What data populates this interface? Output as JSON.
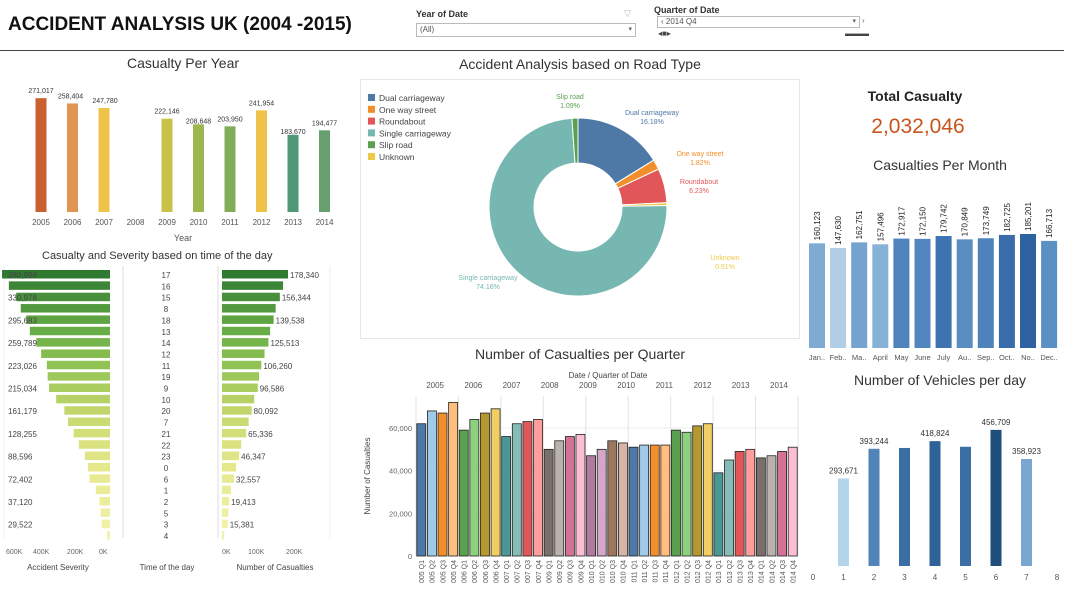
{
  "header": {
    "title": "ACCIDENT ANALYSIS UK (2004 -2015)",
    "filter_year_label": "Year of Date",
    "filter_year_value": "(All)",
    "filter_quarter_label": "Quarter of Date",
    "filter_quarter_value": "2014 Q4"
  },
  "kpi": {
    "label": "Total Casualty",
    "value": "2,032,046"
  },
  "chart_data": [
    {
      "type": "bar",
      "title": "Casualty Per Year",
      "xlabel": "Year",
      "categories": [
        "2005",
        "2006",
        "2007",
        "2008",
        "2009",
        "2010",
        "2011",
        "2012",
        "2013",
        "2014"
      ],
      "values": [
        271017,
        258404,
        247780,
        null,
        222146,
        208648,
        203950,
        241954,
        183670,
        194477
      ],
      "labels": [
        "271,017",
        "258,404",
        "247,780",
        "",
        "222,146",
        "208,648",
        "203,950",
        "241,954",
        "183,670",
        "194,477"
      ],
      "colors": [
        "#c8602f",
        "#e29550",
        "#efc24a",
        null,
        "#c9c14a",
        "#9cb84c",
        "#82ad58",
        "#efc24a",
        "#4d9875",
        "#65a06e"
      ],
      "ylim": [
        0,
        300000
      ]
    },
    {
      "type": "pie",
      "title": "Accident Analysis based on Road Type",
      "slices": [
        {
          "name": "Dual carriageway",
          "value": 16.18,
          "label": "16.18%",
          "color": "#4e79a7"
        },
        {
          "name": "One way street",
          "value": 1.82,
          "label": "1.82%",
          "color": "#f28e2b"
        },
        {
          "name": "Roundabout",
          "value": 6.23,
          "label": "6.23%",
          "color": "#e15759"
        },
        {
          "name": "Unknown",
          "value": 0.51,
          "label": "0.51%",
          "color": "#edc948"
        },
        {
          "name": "Single carriageway",
          "value": 74.16,
          "label": "74.16%",
          "color": "#76b7b2"
        },
        {
          "name": "Slip road",
          "value": 1.09,
          "label": "1.09%",
          "color": "#59a14f"
        }
      ],
      "legend": [
        "Dual carriageway",
        "One way street",
        "Roundabout",
        "Single carriageway",
        "Slip road",
        "Unknown"
      ],
      "legend_position": "top-left"
    },
    {
      "type": "bar",
      "title": "Casualties Per Month",
      "categories": [
        "Jan..",
        "Feb..",
        "Ma..",
        "April",
        "May",
        "June",
        "July",
        "Au..",
        "Sep..",
        "Oct..",
        "No..",
        "Dec.."
      ],
      "values": [
        160123,
        147630,
        162751,
        157496,
        172917,
        172150,
        179742,
        170849,
        173749,
        182725,
        185201,
        166713
      ],
      "labels": [
        "160,123",
        "147,630",
        "162,751",
        "157,496",
        "172,917",
        "172,150",
        "179,742",
        "170,849",
        "173,749",
        "182,725",
        "185,201",
        "166,713"
      ],
      "colors": [
        "#7fabd3",
        "#b2cde6",
        "#74a3cf",
        "#87b2d8",
        "#4f83bc",
        "#5187be",
        "#3c73b0",
        "#5a8dc2",
        "#4e82bc",
        "#3a6cab",
        "#2f62a3",
        "#5c8fc4"
      ]
    },
    {
      "type": "bar",
      "title": "Casualty and Severity based on time of the day",
      "categories": [
        "17",
        "16",
        "15",
        "8",
        "18",
        "13",
        "14",
        "12",
        "11",
        "19",
        "9",
        "10",
        "20",
        "7",
        "21",
        "22",
        "23",
        "0",
        "6",
        "1",
        "2",
        "5",
        "3",
        "4"
      ],
      "severity_values": [
        380998,
        357000,
        330978,
        315000,
        295683,
        283000,
        259789,
        243000,
        223026,
        220000,
        215034,
        190000,
        161179,
        148000,
        128255,
        110000,
        88596,
        78000,
        72402,
        50000,
        37120,
        33000,
        29522,
        10000
      ],
      "severity_labels": [
        "380,998",
        "",
        "330,978",
        "",
        "295,683",
        "",
        "259,789",
        "",
        "223,026",
        "",
        "215,034",
        "",
        "161,179",
        "",
        "128,255",
        "",
        "88,596",
        "",
        "72,402",
        "",
        "37,120",
        "",
        "29,522",
        ""
      ],
      "casualty_values": [
        178340,
        165000,
        156344,
        145000,
        139538,
        130000,
        125513,
        115000,
        106260,
        100000,
        96586,
        87000,
        80092,
        72000,
        65336,
        52000,
        46347,
        38000,
        32557,
        24000,
        19413,
        17000,
        15381,
        6000
      ],
      "casualty_labels": [
        "178,340",
        "",
        "156,344",
        "",
        "139,538",
        "",
        "125,513",
        "",
        "106,260",
        "",
        "96,586",
        "",
        "80,092",
        "",
        "65,336",
        "",
        "46,347",
        "",
        "32,557",
        "",
        "19,413",
        "",
        "15,381",
        ""
      ],
      "colors": [
        "#2f7a30",
        "#3d8537",
        "#48903b",
        "#529a3e",
        "#5ea443",
        "#69ad47",
        "#76b54b",
        "#84bc4f",
        "#90c254",
        "#9dc85a",
        "#aacd60",
        "#b6d266",
        "#c1d76c",
        "#cadb73",
        "#d2df79",
        "#d9e27f",
        "#dfe585",
        "#e4e88b",
        "#e8ea91",
        "#ebec97",
        "#edee9c",
        "#efefa1",
        "#f0f0a6",
        "#f1f1ab"
      ],
      "severity_axis": [
        "600K",
        "400K",
        "200K",
        "0K"
      ],
      "casualty_axis": [
        "0K",
        "100K",
        "200K"
      ],
      "col_labels": [
        "Accident Severity",
        "Time of the day",
        "Number of Casualties"
      ]
    },
    {
      "type": "bar",
      "title": "Number of Casualties per Quarter",
      "header": "Date / Quarter of Date",
      "ylabel": "Number of Casualties",
      "years": [
        "2005",
        "2006",
        "2007",
        "2009",
        "2010",
        "2011",
        "2012",
        "2013",
        "2014"
      ],
      "year_quarter_counts": [
        4,
        4,
        4,
        4,
        4,
        4,
        4,
        4,
        4
      ],
      "top_years": [
        "2005",
        "2006",
        "2007",
        "2008",
        "2009",
        "2010",
        "2011",
        "2012",
        "2013",
        "2014"
      ],
      "categories": [
        "005 Q1",
        "005 Q2",
        "005 Q3",
        "005 Q4",
        "006 Q1",
        "006 Q2",
        "006 Q3",
        "006 Q4",
        "007 Q1",
        "007 Q2",
        "007 Q3",
        "007 Q4",
        "009 Q1",
        "009 Q2",
        "009 Q3",
        "009 Q4",
        "010 Q1",
        "010 Q2",
        "010 Q3",
        "010 Q4",
        "011 Q1",
        "011 Q2",
        "011 Q3",
        "011 Q4",
        "012 Q1",
        "012 Q2",
        "012 Q3",
        "012 Q4",
        "013 Q1",
        "013 Q2",
        "013 Q3",
        "013 Q4",
        "014 Q1",
        "014 Q2",
        "014 Q3",
        "014 Q4"
      ],
      "values": [
        62000,
        68000,
        67000,
        72000,
        59000,
        64000,
        67000,
        69000,
        56000,
        62000,
        63000,
        64000,
        50000,
        54000,
        56000,
        57000,
        47000,
        50000,
        54000,
        53000,
        51000,
        52000,
        52000,
        52000,
        59000,
        58000,
        61000,
        62000,
        39000,
        45000,
        49000,
        50000,
        46000,
        47000,
        49000,
        51000
      ],
      "colors": [
        "#4e79a7",
        "#a0cbe8",
        "#f28e2b",
        "#ffbe7d",
        "#59a14f",
        "#8cd17d",
        "#b6992d",
        "#f1ce63",
        "#499894",
        "#86bcb6",
        "#e15759",
        "#ff9d9a",
        "#79706e",
        "#bab0ac",
        "#d37295",
        "#fabfd2",
        "#b07aa1",
        "#d4a6c8",
        "#9d7660",
        "#d7b5a6",
        "#4e79a7",
        "#a0cbe8",
        "#f28e2b",
        "#ffbe7d",
        "#59a14f",
        "#8cd17d",
        "#b6992d",
        "#f1ce63",
        "#499894",
        "#86bcb6",
        "#e15759",
        "#ff9d9a",
        "#79706e",
        "#bab0ac",
        "#d37295",
        "#fabfd2"
      ],
      "yticks": [
        0,
        20000,
        40000,
        60000
      ],
      "ytick_labels": [
        "0",
        "20,000",
        "40,000",
        "60,000"
      ],
      "ylim": [
        0,
        75000
      ]
    },
    {
      "type": "bar",
      "title": "Number of Vehicles per day",
      "categories": [
        1,
        2,
        3,
        4,
        5,
        6,
        7
      ],
      "values": [
        293671,
        393244,
        396000,
        418824,
        400000,
        456709,
        358923
      ],
      "labels": [
        "293,671",
        "393,244",
        "",
        "418,824",
        "",
        "456,709",
        "358,923"
      ],
      "colors": [
        "#b3d4ea",
        "#5185b8",
        "#3a6ea5",
        "#2f6299",
        "#3a6ea5",
        "#1f4e7a",
        "#7aa7cf"
      ],
      "xticks": [
        0,
        1,
        2,
        3,
        4,
        5,
        6,
        7,
        8
      ],
      "ylim": [
        0,
        520000
      ]
    }
  ]
}
